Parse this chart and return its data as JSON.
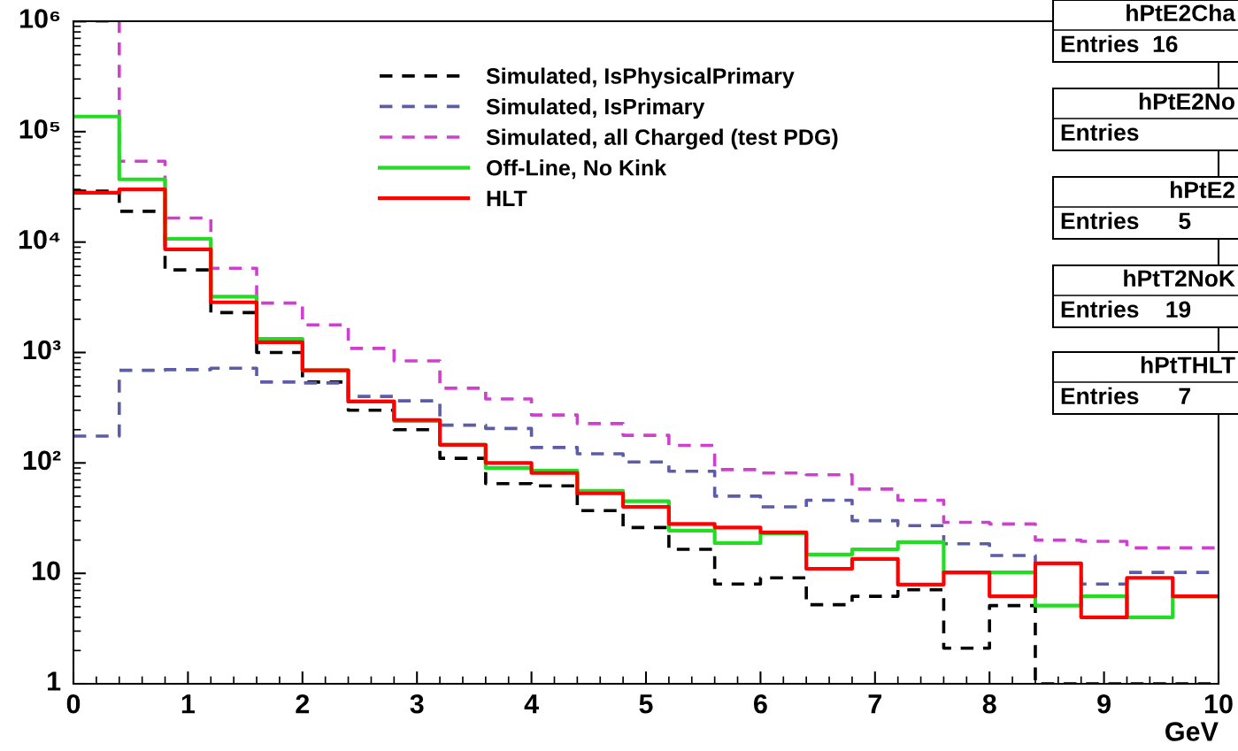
{
  "chart_data": {
    "type": "histogram",
    "xlabel": "GeV",
    "bins": [
      0,
      0.4,
      0.8,
      1.2,
      1.6,
      2.0,
      2.4,
      2.8,
      3.2,
      3.6,
      4.0,
      4.4,
      4.8,
      5.2,
      5.6,
      6.0,
      6.4,
      6.8,
      7.2,
      7.6,
      8.0,
      8.4,
      8.8,
      9.2,
      9.6,
      10
    ],
    "series": [
      {
        "name": "Simulated, IsPhysicalPrimary",
        "color": "#000000",
        "line_style": "dashed",
        "values": [
          29000,
          19000,
          5600,
          2300,
          1000,
          540,
          300,
          200,
          110,
          65,
          62,
          37,
          26,
          16.5,
          8,
          9.1,
          5.2,
          6.2,
          7.1,
          2.1,
          5.1,
          1,
          1,
          1,
          1
        ]
      },
      {
        "name": "Simulated, IsPrimary",
        "color": "#5c5ca8",
        "line_style": "dashed",
        "values": [
          175,
          690,
          700,
          720,
          540,
          530,
          400,
          365,
          220,
          205,
          138,
          121,
          102,
          84,
          50,
          40,
          46,
          30,
          27,
          18.5,
          14.5,
          12.3,
          8,
          10.2,
          10.2
        ]
      },
      {
        "name": "Simulated, all Charged (test PDG)",
        "color": "#d040d0",
        "line_style": "dashed",
        "values": [
          1000000,
          54000,
          16500,
          5800,
          2800,
          1780,
          1090,
          840,
          475,
          380,
          272,
          227,
          178,
          144,
          87,
          81,
          78,
          58,
          46,
          29,
          28,
          20,
          19.5,
          17,
          17
        ]
      },
      {
        "name": "Off-Line, No Kink",
        "color": "#22dd22",
        "line_style": "solid",
        "values": [
          137000,
          37000,
          10700,
          3200,
          1330,
          690,
          360,
          240,
          146,
          90,
          85,
          56,
          45,
          24.4,
          18.8,
          23,
          14.8,
          16.5,
          19.2,
          10.2,
          10.2,
          5.1,
          6.2,
          4,
          6.2
        ]
      },
      {
        "name": "HLT",
        "color": "#ff0000",
        "line_style": "solid",
        "values": [
          28000,
          30000,
          8600,
          2850,
          1240,
          690,
          360,
          245,
          146,
          100,
          81,
          53,
          40,
          28,
          26,
          23.5,
          11,
          13.5,
          7.9,
          10.2,
          6.2,
          12.3,
          4,
          9.1,
          6.2
        ]
      }
    ],
    "log": "y",
    "xlim": [
      0,
      10
    ],
    "xticks": [
      0,
      1,
      2,
      3,
      4,
      5,
      6,
      7,
      8,
      9,
      10
    ],
    "ylim": [
      1,
      1000000
    ],
    "yticks": [
      1,
      10,
      {
        "value": 100,
        "label": "10²"
      },
      {
        "value": 1000,
        "label": "10³"
      },
      {
        "value": 10000,
        "label": "10⁴"
      },
      {
        "value": 100000,
        "label": "10⁵"
      },
      {
        "value": 1000000,
        "label": "10⁶"
      }
    ],
    "grid": false,
    "legend": "top",
    "annotations": [
      "hPtE2Cha",
      "Entries  16",
      "hPtE2No",
      "Entries",
      "hPtE2",
      "Entries      5",
      "hPtT2NoK",
      "Entries    19",
      "hPtTHLT",
      "Entries      7"
    ]
  }
}
